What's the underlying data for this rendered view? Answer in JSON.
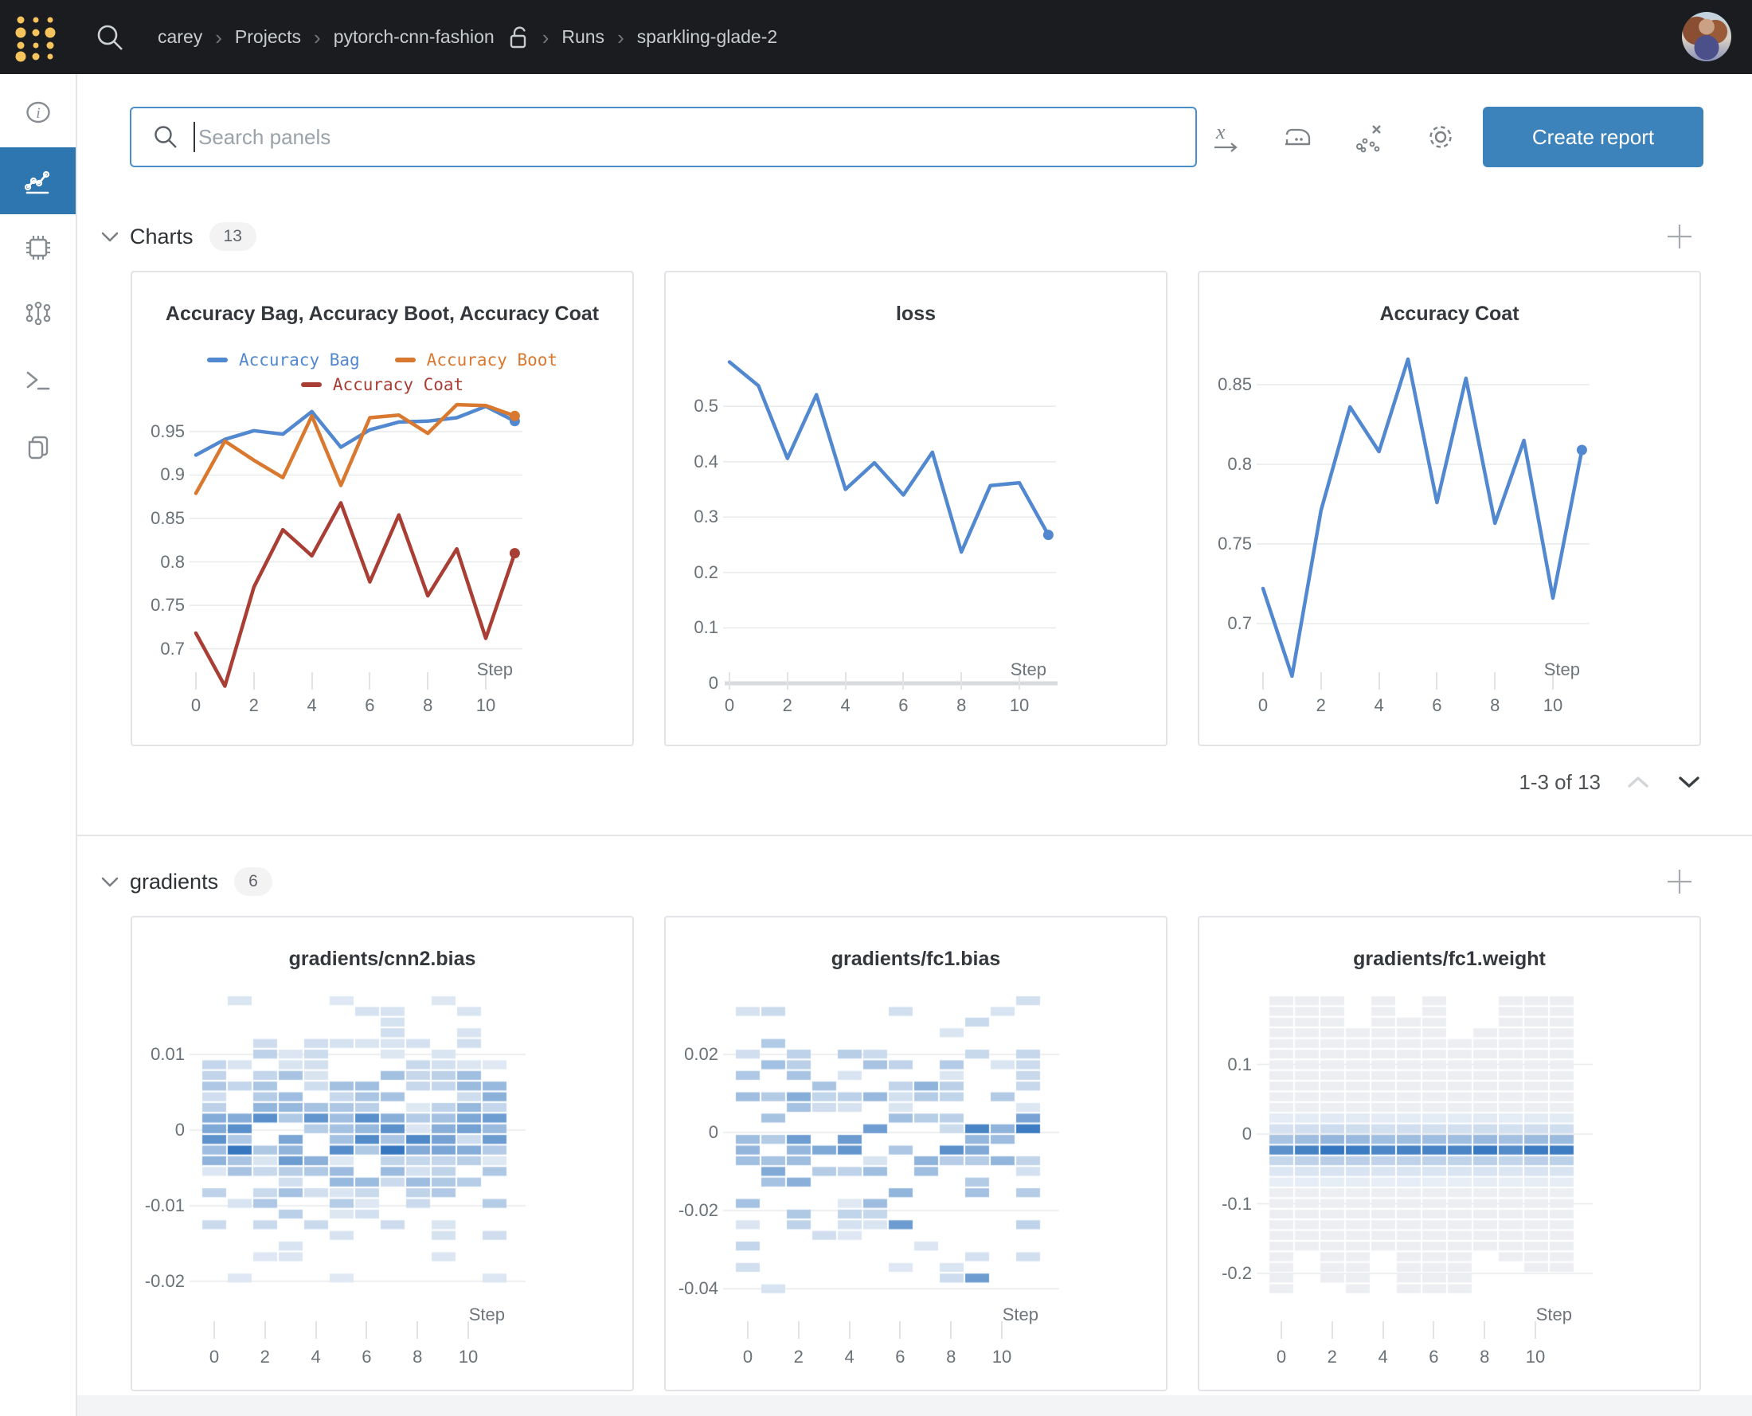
{
  "topbar": {
    "breadcrumb": [
      {
        "label": "carey",
        "lock": false
      },
      {
        "label": "Projects",
        "lock": false
      },
      {
        "label": "pytorch-cnn-fashion",
        "lock": true
      },
      {
        "label": "Runs",
        "lock": false
      },
      {
        "label": "sparkling-glade-2",
        "lock": false
      }
    ]
  },
  "sidebar": {
    "items": [
      {
        "id": "overview",
        "icon": "info-icon",
        "active": false
      },
      {
        "id": "charts",
        "icon": "line-chart-icon",
        "active": true
      },
      {
        "id": "system",
        "icon": "microchip-icon",
        "active": false
      },
      {
        "id": "model",
        "icon": "model-graph-icon",
        "active": false
      },
      {
        "id": "logs",
        "icon": "terminal-icon",
        "active": false
      },
      {
        "id": "files",
        "icon": "files-icon",
        "active": false
      }
    ]
  },
  "toolbar": {
    "search_placeholder": "Search panels",
    "icons": [
      {
        "id": "x-axis"
      },
      {
        "id": "smoothing-iron"
      },
      {
        "id": "outliers"
      },
      {
        "id": "settings-gear"
      }
    ],
    "create_report_label": "Create report"
  },
  "sections": [
    {
      "id": "charts",
      "title": "Charts",
      "count": "13"
    },
    {
      "id": "gradients",
      "title": "gradients",
      "count": "6"
    }
  ],
  "pagination": {
    "label": "1-3 of 13",
    "up_enabled": false,
    "down_enabled": true
  },
  "colors": {
    "topbar_bg": "#1a1c1f",
    "logo_gold": "#f6c35c",
    "sidebar_active": "#2d76b0",
    "button_blue": "#3c82bb",
    "search_border": "#4a8fca",
    "series_blue": "#5288cf",
    "series_orange": "#d9782f",
    "series_red": "#a93e35",
    "heatmap_blue": "#387ac1",
    "gridline": "#e8eaec",
    "tick_text": "#6a7177"
  },
  "chart_data": [
    {
      "section": "charts",
      "type": "line",
      "title": "Accuracy Bag, Accuracy Boot, Accuracy Coat",
      "x": [
        0,
        1,
        2,
        3,
        4,
        5,
        6,
        7,
        8,
        9,
        10,
        11
      ],
      "series": [
        {
          "name": "Accuracy Bag",
          "color": "#5288cf",
          "values": [
            0.923,
            0.941,
            0.951,
            0.947,
            0.973,
            0.932,
            0.952,
            0.961,
            0.962,
            0.966,
            0.979,
            0.962
          ]
        },
        {
          "name": "Accuracy Boot",
          "color": "#d9782f",
          "values": [
            0.879,
            0.939,
            0.917,
            0.897,
            0.968,
            0.888,
            0.966,
            0.969,
            0.948,
            0.981,
            0.98,
            0.968
          ]
        },
        {
          "name": "Accuracy Coat",
          "color": "#a93e35",
          "values": [
            0.718,
            0.657,
            0.771,
            0.837,
            0.807,
            0.868,
            0.777,
            0.854,
            0.761,
            0.815,
            0.712,
            0.81
          ]
        }
      ],
      "ylim": [
        0.982,
        0.652
      ],
      "yticks": [
        0.95,
        0.9,
        0.85,
        0.8,
        0.75,
        0.7
      ],
      "ytick_labels": [
        "0.95",
        "0.9",
        "0.85",
        "0.8",
        "0.75",
        "0.7"
      ],
      "xticks": [
        0,
        2,
        4,
        6,
        8,
        10
      ],
      "xlabel": "Step",
      "legend": true,
      "grid": true,
      "end_dot": true
    },
    {
      "section": "charts",
      "type": "line",
      "title": "loss",
      "x": [
        0,
        1,
        2,
        3,
        4,
        5,
        6,
        7,
        8,
        9,
        10,
        11
      ],
      "series": [
        {
          "name": "loss",
          "color": "#5288cf",
          "values": [
            0.58,
            0.537,
            0.406,
            0.521,
            0.35,
            0.398,
            0.34,
            0.417,
            0.237,
            0.357,
            0.362,
            0.268
          ]
        }
      ],
      "ylim": [
        0.598,
        0
      ],
      "yticks": [
        0.5,
        0.4,
        0.3,
        0.2,
        0.1,
        0
      ],
      "ytick_labels": [
        "0.5",
        "0.4",
        "0.3",
        "0.2",
        "0.1",
        "0"
      ],
      "xticks": [
        0,
        2,
        4,
        6,
        8,
        10
      ],
      "xlabel": "Step",
      "legend": false,
      "grid": true,
      "zero_axis": true,
      "end_dot": true
    },
    {
      "section": "charts",
      "type": "line",
      "title": "Accuracy Coat",
      "x": [
        0,
        1,
        2,
        3,
        4,
        5,
        6,
        7,
        8,
        9,
        10,
        11
      ],
      "series": [
        {
          "name": "Accuracy Coat",
          "color": "#5288cf",
          "values": [
            0.722,
            0.667,
            0.771,
            0.836,
            0.808,
            0.866,
            0.776,
            0.854,
            0.763,
            0.815,
            0.716,
            0.809
          ]
        }
      ],
      "ylim": [
        0.8705,
        0.6625
      ],
      "yticks": [
        0.85,
        0.8,
        0.75,
        0.7
      ],
      "ytick_labels": [
        "0.85",
        "0.8",
        "0.75",
        "0.7"
      ],
      "xticks": [
        0,
        2,
        4,
        6,
        8,
        10
      ],
      "xlabel": "Step",
      "legend": false,
      "grid": true,
      "end_dot": true
    },
    {
      "section": "gradients",
      "type": "heatmap",
      "title": "gradients/cnn2.bias",
      "x_range": [
        0,
        11
      ],
      "ylim": [
        0.0178,
        -0.0217
      ],
      "yticks": [
        0.01,
        0,
        -0.01,
        -0.02
      ],
      "ytick_labels": [
        "0.01",
        "0",
        "-0.01",
        "-0.02"
      ],
      "xticks": [
        0,
        2,
        4,
        6,
        8,
        10
      ],
      "xlabel": "Step",
      "distribution": {
        "style": "scatter",
        "seed": 11,
        "density": 0.85,
        "sigma": 5.4,
        "dark_band": true,
        "note": "per-step histogram of gradient values; mass concentrated around 0 with darkest bins on the 0 row, scattered light bins from ~0.015 to ~-0.021"
      }
    },
    {
      "section": "gradients",
      "type": "heatmap",
      "title": "gradients/fc1.bias",
      "x_range": [
        0,
        11
      ],
      "ylim": [
        0.0351,
        -0.0414
      ],
      "yticks": [
        0.02,
        0,
        -0.02,
        -0.04
      ],
      "ytick_labels": [
        "0.02",
        "0",
        "-0.02",
        "-0.04"
      ],
      "xticks": [
        0,
        2,
        4,
        6,
        8,
        10
      ],
      "xlabel": "Step",
      "distribution": {
        "style": "scatter",
        "seed": 29,
        "density": 0.5,
        "sigma": 7.2,
        "dark_band": true,
        "note": "sparser per-step histogram; bins scattered between ~0.034 and ~-0.043 with moderate concentration near 0"
      }
    },
    {
      "section": "gradients",
      "type": "heatmap",
      "title": "gradients/fc1.weight",
      "x_range": [
        0,
        11
      ],
      "ylim": [
        0.199,
        -0.2297
      ],
      "yticks": [
        0.1,
        0,
        -0.1,
        -0.2
      ],
      "ytick_labels": [
        "0.1",
        "0",
        "-0.1",
        "-0.2"
      ],
      "xticks": [
        0,
        2,
        4,
        6,
        8,
        10
      ],
      "xlabel": "Step",
      "distribution": {
        "style": "band",
        "seed": 5,
        "note": "pale gray envelope spanning ~0.15 to ~-0.23 with a strong blue horizontal band just below 0, darkest from step 5 onward"
      }
    }
  ]
}
